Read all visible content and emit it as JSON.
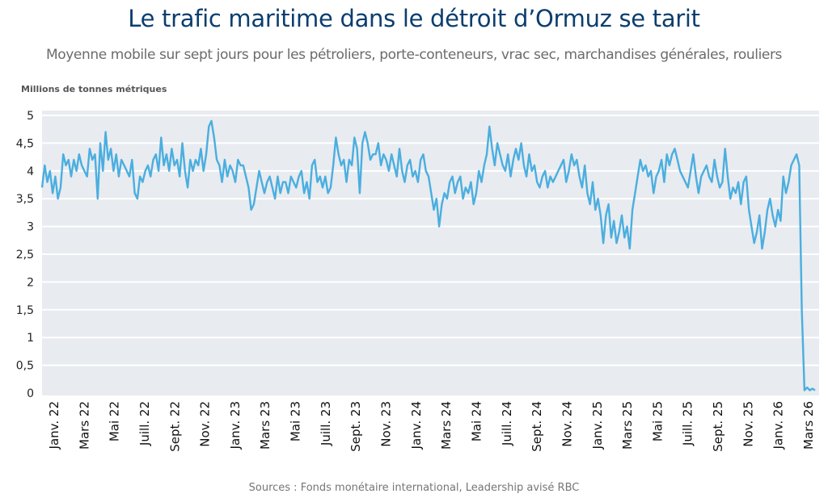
{
  "header": {
    "title": "Le trafic maritime dans le détroit d’Ormuz se tarit",
    "subtitle": "Moyenne mobile sur sept jours pour les pétroliers, porte-conteneurs, vrac sec, marchandises générales, rouliers"
  },
  "footer": {
    "source": "Sources : Fonds monétaire international, Leadership avisé RBC"
  },
  "colors": {
    "line": "#4aaee0",
    "plot_background": "#e8ebef",
    "gridline": "#ffffff",
    "title": "#0b3e6f"
  },
  "chart_data": {
    "type": "line",
    "title": "Le trafic maritime dans le détroit d’Ormuz se tarit",
    "subtitle": "Moyenne mobile sur sept jours pour les pétroliers, porte-conteneurs, vrac sec, marchandises générales, rouliers",
    "ylabel": "Millions de tonnes métriques",
    "xlabel": "",
    "ylim": [
      0,
      5
    ],
    "grid": true,
    "yticks": [
      "5",
      "4,5",
      "4",
      "3,5",
      "3",
      "2,5",
      "2",
      "1,5",
      "1",
      "0,5",
      "0"
    ],
    "ytick_values": [
      5,
      4.5,
      4,
      3.5,
      3,
      2.5,
      2,
      1.5,
      1,
      0.5,
      0
    ],
    "xticks": [
      "Janv. 22",
      "Mars 22",
      "Mai 22",
      "Juill. 22",
      "Sept. 22",
      "Nov. 22",
      "Janv. 23",
      "Mars 23",
      "Mai 23",
      "Juill. 23",
      "Sept. 23",
      "Nov. 23",
      "Janv. 24",
      "Mars 24",
      "Mai 24",
      "Juill. 24",
      "Sept. 24",
      "Nov. 24",
      "Janv. 25",
      "Mars 25",
      "Mai 25",
      "Juill. 25",
      "Sept. 25",
      "Nov. 25",
      "Janv. 26",
      "Mars 26"
    ],
    "x_start": "Janv. 22",
    "x_end": "Mars 26",
    "series": [
      {
        "name": "Trafic maritime (moyenne mobile 7 jours)",
        "values": [
          3.7,
          4.1,
          3.8,
          4.0,
          3.6,
          3.9,
          3.5,
          3.7,
          4.3,
          4.1,
          4.2,
          3.9,
          4.2,
          4.0,
          4.3,
          4.1,
          4.0,
          3.9,
          4.4,
          4.2,
          4.3,
          3.5,
          4.5,
          4.0,
          4.7,
          4.2,
          4.4,
          4.0,
          4.3,
          3.9,
          4.2,
          4.1,
          4.0,
          3.9,
          4.2,
          3.6,
          3.5,
          3.9,
          3.8,
          4.0,
          4.1,
          3.9,
          4.2,
          4.3,
          4.0,
          4.6,
          4.1,
          4.3,
          4.0,
          4.4,
          4.1,
          4.2,
          3.9,
          4.5,
          4.0,
          3.7,
          4.2,
          4.0,
          4.2,
          4.1,
          4.4,
          4.0,
          4.3,
          4.8,
          4.9,
          4.6,
          4.2,
          4.1,
          3.8,
          4.2,
          3.9,
          4.1,
          4.0,
          3.8,
          4.2,
          4.1,
          4.1,
          3.9,
          3.7,
          3.3,
          3.4,
          3.7,
          4.0,
          3.8,
          3.6,
          3.8,
          3.9,
          3.7,
          3.5,
          3.9,
          3.6,
          3.8,
          3.8,
          3.6,
          3.9,
          3.8,
          3.7,
          3.9,
          4.0,
          3.6,
          3.8,
          3.5,
          4.1,
          4.2,
          3.8,
          3.9,
          3.7,
          3.9,
          3.6,
          3.7,
          4.1,
          4.6,
          4.3,
          4.1,
          4.2,
          3.8,
          4.2,
          4.1,
          4.6,
          4.4,
          3.6,
          4.5,
          4.7,
          4.5,
          4.2,
          4.3,
          4.3,
          4.5,
          4.1,
          4.3,
          4.2,
          4.0,
          4.3,
          4.1,
          3.9,
          4.4,
          4.0,
          3.8,
          4.1,
          4.2,
          3.9,
          4.0,
          3.8,
          4.2,
          4.3,
          4.0,
          3.9,
          3.6,
          3.3,
          3.5,
          3.0,
          3.4,
          3.6,
          3.5,
          3.8,
          3.9,
          3.6,
          3.8,
          3.9,
          3.5,
          3.7,
          3.6,
          3.8,
          3.4,
          3.6,
          4.0,
          3.8,
          4.1,
          4.3,
          4.8,
          4.4,
          4.1,
          4.5,
          4.3,
          4.1,
          4.0,
          4.3,
          3.9,
          4.2,
          4.4,
          4.2,
          4.5,
          4.1,
          3.9,
          4.3,
          4.0,
          4.1,
          3.8,
          3.7,
          3.9,
          4.0,
          3.7,
          3.9,
          3.8,
          3.9,
          4.0,
          4.1,
          4.2,
          3.8,
          4.0,
          4.3,
          4.1,
          4.2,
          3.9,
          3.7,
          4.1,
          3.6,
          3.4,
          3.8,
          3.3,
          3.5,
          3.2,
          2.7,
          3.2,
          3.4,
          2.8,
          3.1,
          2.7,
          2.9,
          3.2,
          2.8,
          3.0,
          2.6,
          3.3,
          3.6,
          3.9,
          4.2,
          4.0,
          4.1,
          3.9,
          4.0,
          3.6,
          3.9,
          4.0,
          4.2,
          3.8,
          4.3,
          4.1,
          4.3,
          4.4,
          4.2,
          4.0,
          3.9,
          3.8,
          3.7,
          4.0,
          4.3,
          3.9,
          3.6,
          3.9,
          4.0,
          4.1,
          3.9,
          3.8,
          4.2,
          3.9,
          3.7,
          3.8,
          4.4,
          3.9,
          3.5,
          3.7,
          3.6,
          3.8,
          3.4,
          3.8,
          3.9,
          3.3,
          3.0,
          2.7,
          2.9,
          3.2,
          2.6,
          2.9,
          3.3,
          3.5,
          3.2,
          3.0,
          3.3,
          3.1,
          3.9,
          3.6,
          3.8,
          4.1,
          4.2,
          4.3,
          4.1,
          1.5,
          0.05,
          0.1,
          0.05,
          0.08,
          0.05
        ]
      }
    ]
  }
}
